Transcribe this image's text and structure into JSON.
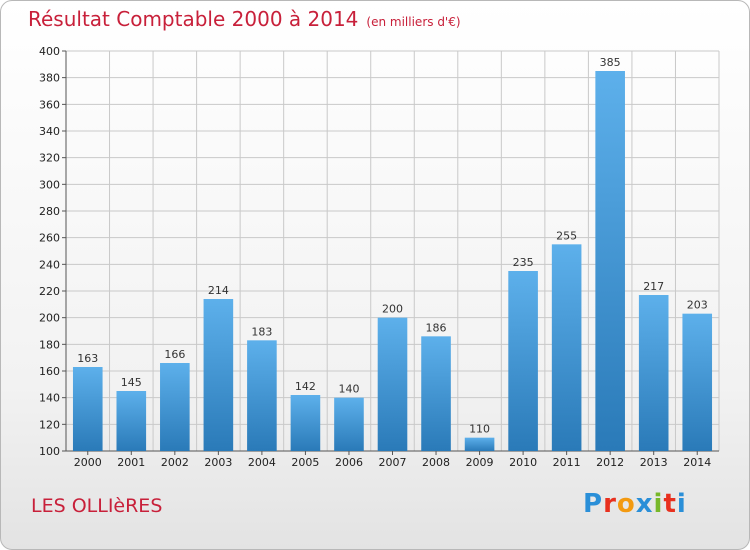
{
  "header": {
    "title": "Résultat Comptable 2000 à 2014",
    "unit": "(en milliers d'€)"
  },
  "footer": {
    "commune": "LES OLLIèRES",
    "logo_text": "Proxiti",
    "logo_colors": [
      "#2a8fd8",
      "#e8301e",
      "#f39a11",
      "#2a8fd8",
      "#78b82a",
      "#e8301e",
      "#2a8fd8"
    ]
  },
  "colors": {
    "bar_light": "#5db0eb",
    "bar_dark": "#2a7ab8",
    "grid": "#c9c9c9",
    "title": "#c8203a"
  },
  "chart_data": {
    "type": "bar",
    "title": "Résultat Comptable 2000 à 2014",
    "subtitle": "(en milliers d'€)",
    "xlabel": "",
    "ylabel": "",
    "categories": [
      "2000",
      "2001",
      "2002",
      "2003",
      "2004",
      "2005",
      "2006",
      "2007",
      "2008",
      "2009",
      "2010",
      "2011",
      "2012",
      "2013",
      "2014"
    ],
    "values": [
      163,
      145,
      166,
      214,
      183,
      142,
      140,
      200,
      186,
      110,
      235,
      255,
      385,
      217,
      203
    ],
    "ylim": [
      100,
      400
    ],
    "yticks": [
      100,
      120,
      140,
      160,
      180,
      200,
      220,
      240,
      260,
      280,
      300,
      320,
      340,
      360,
      380,
      400
    ],
    "grid": true,
    "legend": "none"
  }
}
